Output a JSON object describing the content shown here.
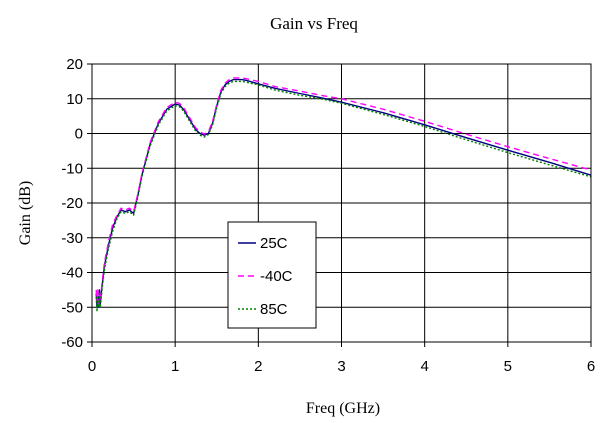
{
  "chart_data": {
    "type": "line",
    "title": "Gain vs Freq",
    "xlabel": "Freq (GHz)",
    "ylabel": "Gain (dB)",
    "xlim": [
      0,
      6
    ],
    "ylim": [
      -60,
      20
    ],
    "xticks": [
      0,
      1,
      2,
      3,
      4,
      5,
      6
    ],
    "yticks": [
      -60,
      -50,
      -40,
      -30,
      -20,
      -10,
      0,
      10,
      20
    ],
    "grid": true,
    "legend_position": "center-left",
    "series": [
      {
        "name": "25C",
        "color": "#000080",
        "dash": "solid",
        "x": [
          0.05,
          0.06,
          0.07,
          0.08,
          0.09,
          0.1,
          0.12,
          0.15,
          0.2,
          0.25,
          0.3,
          0.35,
          0.4,
          0.45,
          0.5,
          0.55,
          0.6,
          0.7,
          0.8,
          0.9,
          1.0,
          1.05,
          1.1,
          1.15,
          1.2,
          1.25,
          1.3,
          1.35,
          1.4,
          1.45,
          1.5,
          1.55,
          1.6,
          1.65,
          1.7,
          1.75,
          1.8,
          1.85,
          1.9,
          2.0,
          2.2,
          2.5,
          2.75,
          3.0,
          3.5,
          4.0,
          4.5,
          5.0,
          5.5,
          6.0
        ],
        "y": [
          -46,
          -50,
          -47,
          -50,
          -45,
          -49,
          -44,
          -38,
          -32,
          -27,
          -24,
          -22,
          -22.5,
          -22,
          -23,
          -18,
          -12,
          -3,
          3,
          7,
          8.5,
          8.2,
          7,
          5,
          3,
          1,
          0,
          -0.5,
          0,
          3,
          8,
          12,
          14,
          15,
          15.5,
          15.5,
          15.5,
          15.3,
          15,
          14.3,
          13,
          11.5,
          10.3,
          9,
          6,
          2.5,
          -1.2,
          -4.8,
          -8.3,
          -12
        ]
      },
      {
        "name": "-40C",
        "color": "#ff00ff",
        "dash": "6,4",
        "x": [
          0.05,
          0.06,
          0.07,
          0.08,
          0.09,
          0.1,
          0.12,
          0.15,
          0.2,
          0.25,
          0.3,
          0.35,
          0.4,
          0.45,
          0.5,
          0.55,
          0.6,
          0.7,
          0.8,
          0.9,
          1.0,
          1.05,
          1.1,
          1.15,
          1.2,
          1.25,
          1.3,
          1.35,
          1.4,
          1.45,
          1.5,
          1.55,
          1.6,
          1.65,
          1.7,
          1.75,
          1.8,
          1.85,
          1.9,
          2.0,
          2.2,
          2.5,
          2.75,
          3.0,
          3.5,
          4.0,
          4.5,
          5.0,
          5.5,
          6.0
        ],
        "y": [
          -45,
          -48,
          -45,
          -50,
          -46,
          -48,
          -43,
          -37,
          -31,
          -26,
          -23.5,
          -21.5,
          -22,
          -21.5,
          -22.5,
          -17.5,
          -11.5,
          -2.5,
          3.5,
          7.5,
          9,
          8.7,
          7.5,
          5.5,
          3.5,
          1.5,
          0.5,
          -0.2,
          0.5,
          3.5,
          8.5,
          12.5,
          14.5,
          15.5,
          16,
          16,
          16,
          15.8,
          15.5,
          15,
          13.5,
          12.2,
          11,
          10,
          7,
          3.5,
          -0.2,
          -3.8,
          -7.2,
          -10.5
        ]
      },
      {
        "name": "85C",
        "color": "#008000",
        "dash": "2,2",
        "x": [
          0.05,
          0.06,
          0.07,
          0.08,
          0.09,
          0.1,
          0.12,
          0.15,
          0.2,
          0.25,
          0.3,
          0.35,
          0.4,
          0.45,
          0.5,
          0.55,
          0.6,
          0.7,
          0.8,
          0.9,
          1.0,
          1.05,
          1.1,
          1.15,
          1.2,
          1.25,
          1.3,
          1.35,
          1.4,
          1.45,
          1.5,
          1.55,
          1.6,
          1.65,
          1.7,
          1.75,
          1.8,
          1.85,
          1.9,
          2.0,
          2.2,
          2.5,
          2.75,
          3.0,
          3.5,
          4.0,
          4.5,
          5.0,
          5.5,
          6.0
        ],
        "y": [
          -47,
          -51,
          -48,
          -50,
          -46,
          -50,
          -45,
          -39,
          -33,
          -28,
          -24.5,
          -22.5,
          -23,
          -22.5,
          -23.5,
          -18.5,
          -12.5,
          -3.5,
          2.5,
          6.5,
          8,
          7.7,
          6.5,
          4.5,
          2.5,
          0.5,
          -0.5,
          -1,
          -0.3,
          2.5,
          7.5,
          11.5,
          13.5,
          14.5,
          15,
          15,
          15,
          14.8,
          14.5,
          14,
          12.5,
          11,
          10,
          8.7,
          5.5,
          2,
          -1.8,
          -5.5,
          -9,
          -12.5
        ]
      }
    ]
  }
}
